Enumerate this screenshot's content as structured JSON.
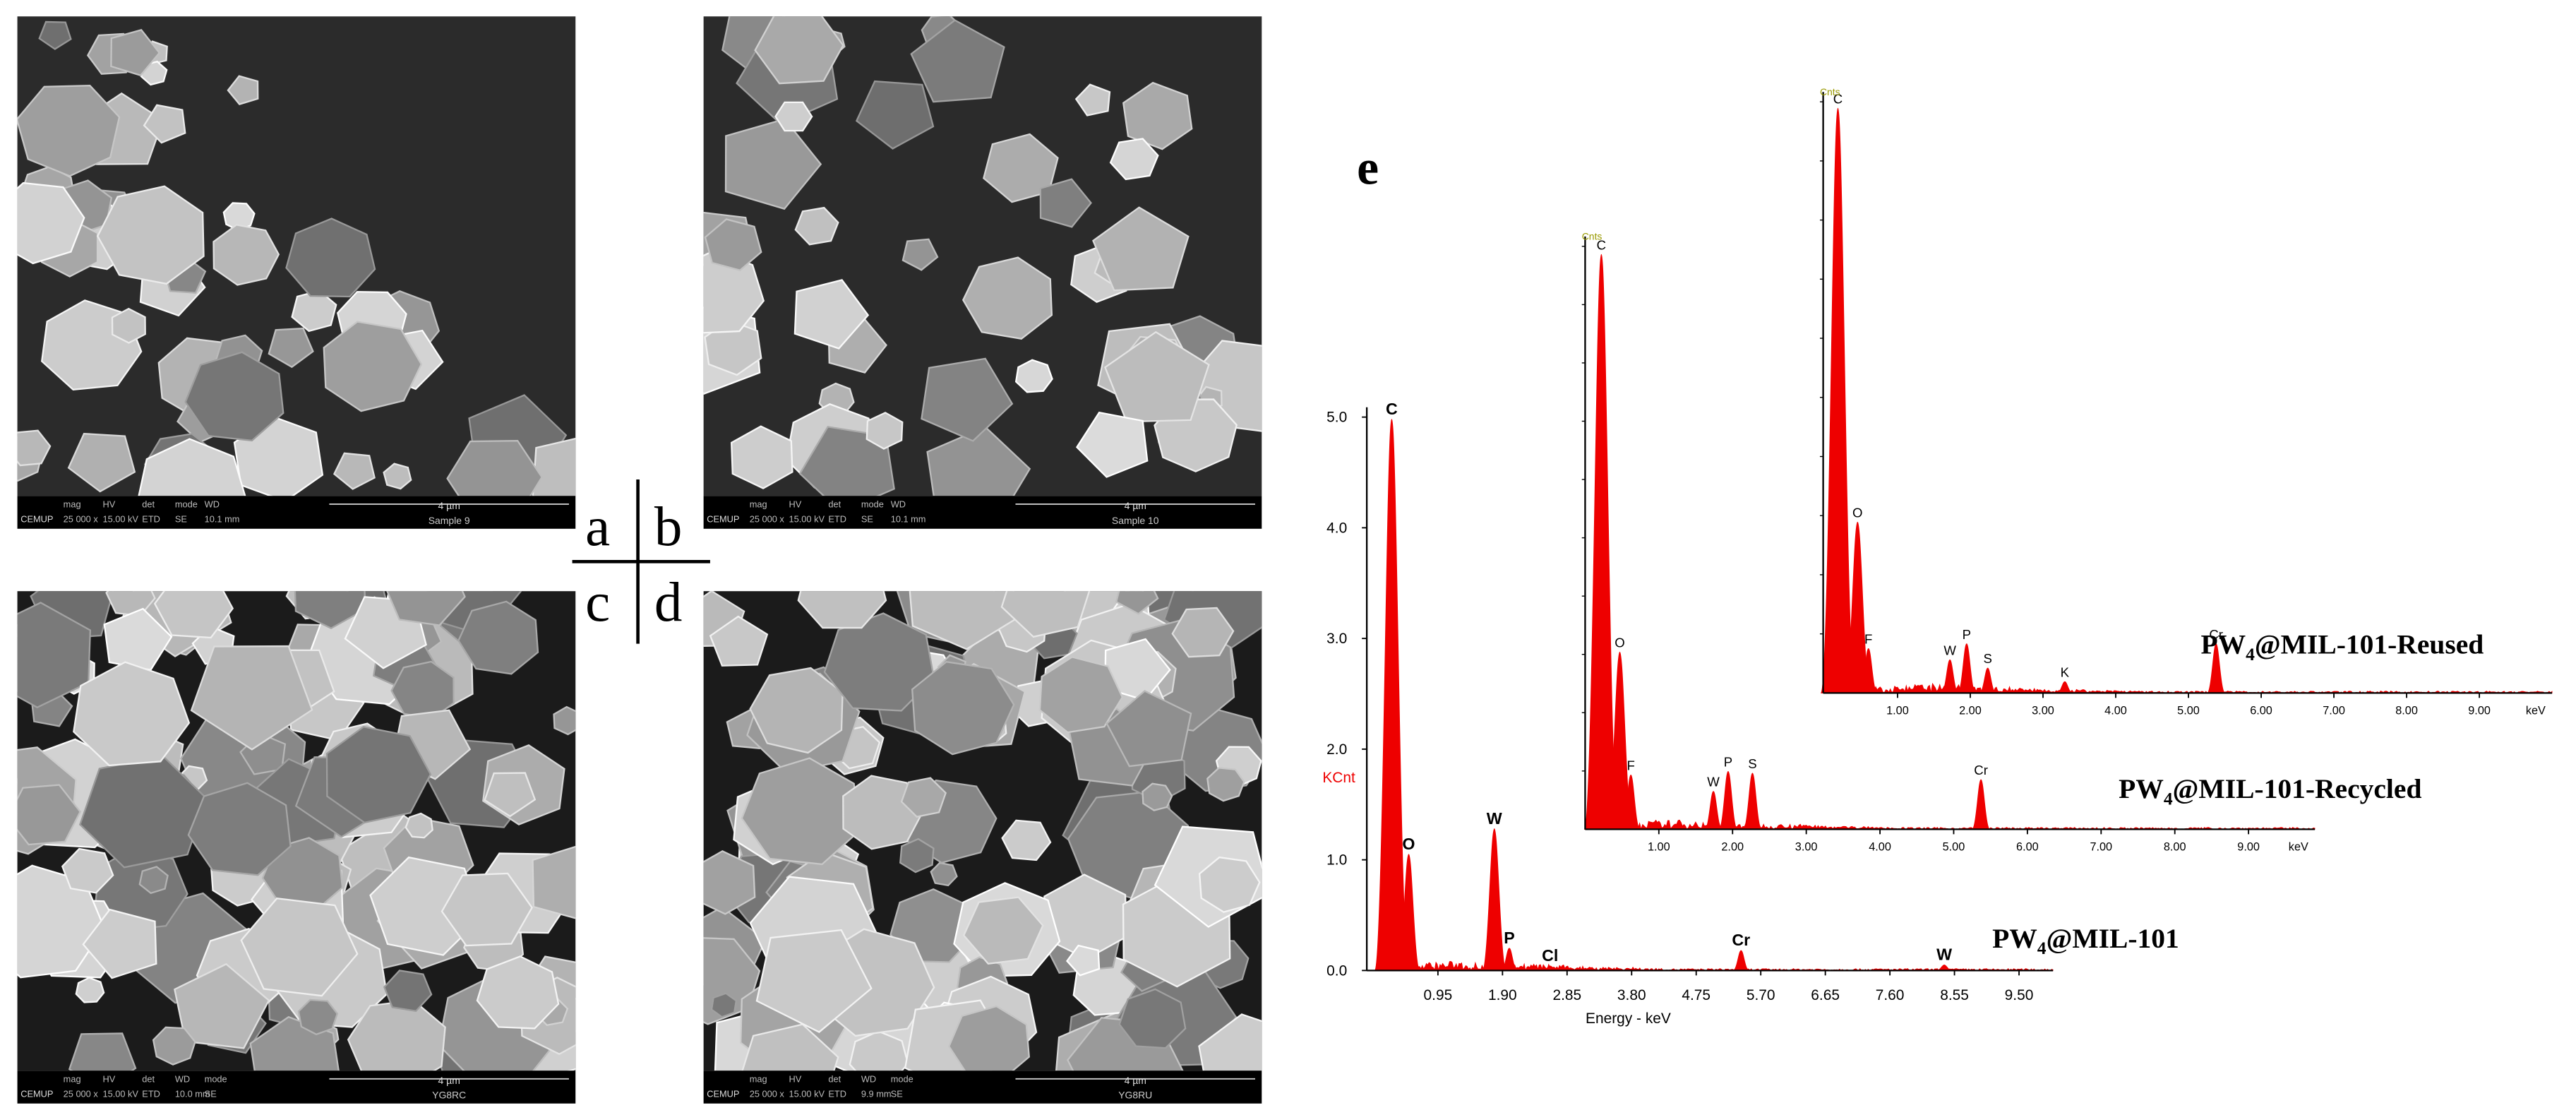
{
  "figure": {
    "sem_panels": [
      {
        "letter": "a",
        "logo": "CEMUP",
        "fields": [
          "mag",
          "HV",
          "det",
          "mode",
          "WD"
        ],
        "values": [
          "25 000 x",
          "15.00 kV",
          "ETD",
          "SE",
          "10.1 mm"
        ],
        "scale": "4 µm",
        "sample": "Sample 9"
      },
      {
        "letter": "b",
        "logo": "CEMUP",
        "fields": [
          "mag",
          "HV",
          "det",
          "mode",
          "WD"
        ],
        "values": [
          "25 000 x",
          "15.00 kV",
          "ETD",
          "SE",
          "10.1 mm"
        ],
        "scale": "4 µm",
        "sample": "Sample 10"
      },
      {
        "letter": "c",
        "logo": "CEMUP",
        "fields": [
          "mag",
          "HV",
          "det",
          "WD",
          "mode"
        ],
        "values": [
          "25 000 x",
          "15.00 kV",
          "ETD",
          "10.0 mm",
          "SE"
        ],
        "scale": "4 µm",
        "sample": "YG8RC"
      },
      {
        "letter": "d",
        "logo": "CEMUP",
        "fields": [
          "mag",
          "HV",
          "det",
          "WD",
          "mode"
        ],
        "values": [
          "25 000 x",
          "15.00 kV",
          "ETD",
          "9.9 mm",
          "SE"
        ],
        "scale": "4 µm",
        "sample": "YG8RU"
      }
    ],
    "spectra_label": "e",
    "spectra": [
      {
        "name": {
          "base": "PW",
          "sub": "4",
          "rest": "@MIL-101"
        },
        "x_label": "Energy - keV",
        "y_label": "KCnt",
        "color": "#ee0000",
        "xlim": [
          0,
          10
        ],
        "ylim": [
          0,
          5
        ],
        "xticks": [
          0.95,
          {
            "value": 1.9,
            "label": "1.90"
          },
          2.85,
          {
            "value": 3.8,
            "label": "3.80"
          },
          4.75,
          {
            "value": 5.7,
            "label": "5.70"
          },
          6.65,
          {
            "value": 7.6,
            "label": "7.60"
          },
          8.55,
          {
            "value": 9.5,
            "label": "9.50"
          }
        ],
        "yticks": [
          {
            "value": 0,
            "label": "0.0"
          },
          {
            "value": 1,
            "label": "1.0"
          },
          {
            "value": 2,
            "label": "2.0"
          },
          {
            "value": 3,
            "label": "3.0"
          },
          {
            "value": 4,
            "label": "4.0"
          },
          {
            "value": 5,
            "label": "5.0"
          }
        ],
        "peaks": [
          {
            "label": "C",
            "energy": 0.27,
            "height": 4.98
          },
          {
            "label": "O",
            "energy": 0.52,
            "height": 1.05
          },
          {
            "label": "W",
            "energy": 1.78,
            "height": 1.28
          },
          {
            "label": "P",
            "energy": 2.0,
            "height": 0.2
          },
          {
            "label": "Cl",
            "energy": 2.6,
            "height": 0.04
          },
          {
            "label": "Cr",
            "energy": 5.41,
            "height": 0.18
          },
          {
            "label": "W",
            "energy": 8.4,
            "height": 0.05
          }
        ]
      },
      {
        "name": {
          "base": "PW",
          "sub": "4",
          "rest": "@MIL-101-Recycled"
        },
        "x_unit": "keV",
        "y_label": "Cnts",
        "color": "#ee0000",
        "xlim": [
          0,
          9.9
        ],
        "ylim": [
          0,
          10
        ],
        "xticks": [
          {
            "value": 1,
            "label": "1.00"
          },
          {
            "value": 2,
            "label": "2.00"
          },
          {
            "value": 3,
            "label": "3.00"
          },
          {
            "value": 4,
            "label": "4.00"
          },
          {
            "value": 5,
            "label": "5.00"
          },
          {
            "value": 6,
            "label": "6.00"
          },
          {
            "value": 7,
            "label": "7.00"
          },
          {
            "value": 8,
            "label": "8.00"
          },
          {
            "value": 9,
            "label": "9.00"
          }
        ],
        "peaks": [
          {
            "label": "C",
            "energy": 0.22,
            "height": 9.86
          },
          {
            "label": "O",
            "energy": 0.47,
            "height": 3.04
          },
          {
            "label": "F",
            "energy": 0.62,
            "height": 0.93
          },
          {
            "label": "W",
            "energy": 1.74,
            "height": 0.65
          },
          {
            "label": "P",
            "energy": 1.94,
            "height": 0.99
          },
          {
            "label": "S",
            "energy": 2.27,
            "height": 0.96
          },
          {
            "label": "Cr",
            "energy": 5.37,
            "height": 0.85
          }
        ]
      },
      {
        "name": {
          "base": "PW",
          "sub": "4",
          "rest": "@MIL-101-Reused"
        },
        "x_unit": "keV",
        "y_label": "Cnts",
        "color": "#ee0000",
        "xlim": [
          0,
          10
        ],
        "ylim": [
          0,
          10
        ],
        "xticks": [
          {
            "value": 1,
            "label": "1.00"
          },
          {
            "value": 2,
            "label": "2.00"
          },
          {
            "value": 3,
            "label": "3.00"
          },
          {
            "value": 4,
            "label": "4.00"
          },
          {
            "value": 5,
            "label": "5.00"
          },
          {
            "value": 6,
            "label": "6.00"
          },
          {
            "value": 7,
            "label": "7.00"
          },
          {
            "value": 8,
            "label": "8.00"
          },
          {
            "value": 9,
            "label": "9.00"
          }
        ],
        "peaks": [
          {
            "label": "C",
            "energy": 0.18,
            "height": 9.89
          },
          {
            "label": "O",
            "energy": 0.45,
            "height": 2.89
          },
          {
            "label": "F",
            "energy": 0.6,
            "height": 0.75
          },
          {
            "label": "W",
            "energy": 1.72,
            "height": 0.56
          },
          {
            "label": "P",
            "energy": 1.95,
            "height": 0.83
          },
          {
            "label": "S",
            "energy": 2.24,
            "height": 0.42
          },
          {
            "label": "K",
            "energy": 3.3,
            "height": 0.19
          },
          {
            "label": "Cr",
            "energy": 5.38,
            "height": 0.83
          }
        ]
      }
    ]
  }
}
